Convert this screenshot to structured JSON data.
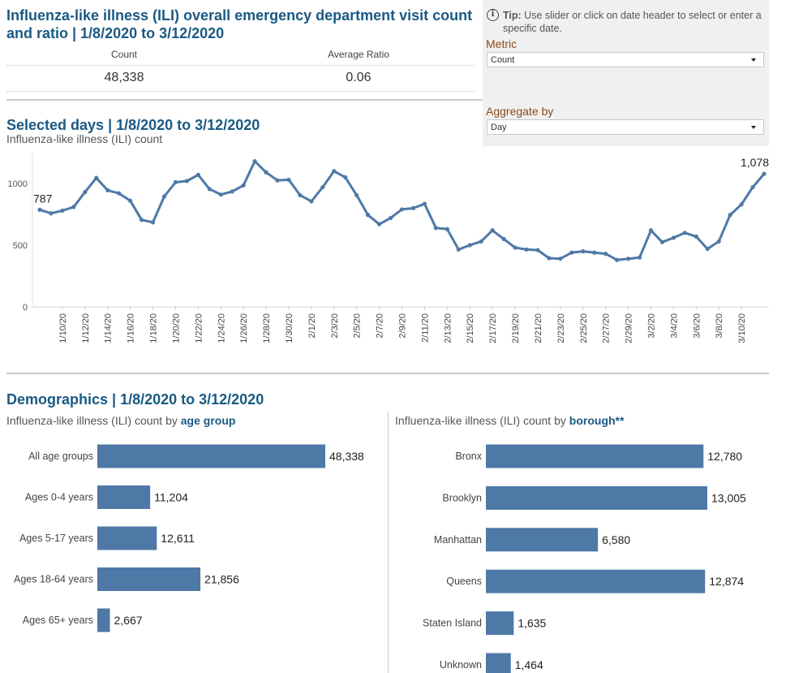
{
  "header": {
    "title": "Influenza-like illness (ILI) overall emergency department visit count and ratio | 1/8/2020 to 3/12/2020",
    "kpis": [
      {
        "label": "Count",
        "value": "48,338"
      },
      {
        "label": "Average Ratio",
        "value": "0.06"
      }
    ]
  },
  "controls": {
    "tip_bold": "Tip:",
    "tip_text": "Use slider or click on date header to select or enter a specific date.",
    "metric_label": "Metric",
    "metric_value": "Count",
    "aggregate_label": "Aggregate by",
    "aggregate_value": "Day"
  },
  "daily": {
    "title": "Selected days | 1/8/2020 to 3/12/2020",
    "subtitle": "Influenza-like illness (ILI) count"
  },
  "demographics": {
    "title": "Demographics | 1/8/2020 to 3/12/2020",
    "age_subtitle_prefix": "Influenza-like illness (ILI) count by",
    "age_subtitle_key": "age group",
    "borough_subtitle_prefix": "Influenza-like illness (ILI) count by",
    "borough_subtitle_key": "borough**"
  },
  "colors": {
    "bar": "#4e79a7",
    "line": "#4e79a7",
    "title": "#1a5a84"
  },
  "chart_data": [
    {
      "type": "line",
      "subtitle": "Influenza-like illness (ILI) count",
      "x": [
        "1/8/20",
        "1/9/20",
        "1/10/20",
        "1/11/20",
        "1/12/20",
        "1/13/20",
        "1/14/20",
        "1/15/20",
        "1/16/20",
        "1/17/20",
        "1/18/20",
        "1/19/20",
        "1/20/20",
        "1/21/20",
        "1/22/20",
        "1/23/20",
        "1/24/20",
        "1/25/20",
        "1/26/20",
        "1/27/20",
        "1/28/20",
        "1/29/20",
        "1/30/20",
        "1/31/20",
        "2/1/20",
        "2/2/20",
        "2/3/20",
        "2/4/20",
        "2/5/20",
        "2/6/20",
        "2/7/20",
        "2/8/20",
        "2/9/20",
        "2/10/20",
        "2/11/20",
        "2/12/20",
        "2/13/20",
        "2/14/20",
        "2/15/20",
        "2/16/20",
        "2/17/20",
        "2/18/20",
        "2/19/20",
        "2/20/20",
        "2/21/20",
        "2/22/20",
        "2/23/20",
        "2/24/20",
        "2/25/20",
        "2/26/20",
        "2/27/20",
        "2/28/20",
        "2/29/20",
        "3/1/20",
        "3/2/20",
        "3/3/20",
        "3/4/20",
        "3/5/20",
        "3/6/20",
        "3/7/20",
        "3/8/20",
        "3/9/20",
        "3/10/20",
        "3/11/20",
        "3/12/20"
      ],
      "tick_labels": [
        "1/10/20",
        "1/12/20",
        "1/14/20",
        "1/16/20",
        "1/18/20",
        "1/20/20",
        "1/22/20",
        "1/24/20",
        "1/26/20",
        "1/28/20",
        "1/30/20",
        "2/1/20",
        "2/3/20",
        "2/5/20",
        "2/7/20",
        "2/9/20",
        "2/11/20",
        "2/13/20",
        "2/15/20",
        "2/17/20",
        "2/19/20",
        "2/21/20",
        "2/23/20",
        "2/25/20",
        "2/27/20",
        "2/29/20",
        "3/2/20",
        "3/4/20",
        "3/6/20",
        "3/8/20",
        "3/10/20"
      ],
      "values": [
        787,
        758,
        780,
        810,
        930,
        1045,
        945,
        920,
        860,
        705,
        685,
        895,
        1010,
        1020,
        1070,
        955,
        910,
        935,
        985,
        1180,
        1090,
        1025,
        1030,
        905,
        855,
        970,
        1100,
        1050,
        905,
        745,
        670,
        720,
        790,
        800,
        835,
        640,
        630,
        465,
        500,
        530,
        620,
        550,
        480,
        465,
        460,
        395,
        390,
        440,
        450,
        440,
        430,
        380,
        390,
        400,
        620,
        525,
        560,
        600,
        570,
        470,
        530,
        745,
        830,
        970,
        1078
      ],
      "data_labels": [
        {
          "x": "1/8/20",
          "text": "787"
        },
        {
          "x": "3/12/20",
          "text": "1,078"
        }
      ],
      "y_ticks": [
        0,
        500,
        1000
      ],
      "ylim": [
        0,
        1250
      ],
      "grid": false
    },
    {
      "type": "bar",
      "orientation": "horizontal",
      "title": "Influenza-like illness (ILI) count by age group",
      "categories": [
        "All age groups",
        "Ages 0-4 years",
        "Ages 5-17 years",
        "Ages 18-64 years",
        "Ages 65+ years"
      ],
      "values": [
        48338,
        11204,
        12611,
        21856,
        2667
      ],
      "labels": [
        "48,338",
        "11,204",
        "12,611",
        "21,856",
        "2,667"
      ]
    },
    {
      "type": "bar",
      "orientation": "horizontal",
      "title": "Influenza-like illness (ILI) count by borough**",
      "categories": [
        "Bronx",
        "Brooklyn",
        "Manhattan",
        "Queens",
        "Staten Island",
        "Unknown"
      ],
      "values": [
        12780,
        13005,
        6580,
        12874,
        1635,
        1464
      ],
      "labels": [
        "12,780",
        "13,005",
        "6,580",
        "12,874",
        "1,635",
        "1,464"
      ]
    }
  ]
}
